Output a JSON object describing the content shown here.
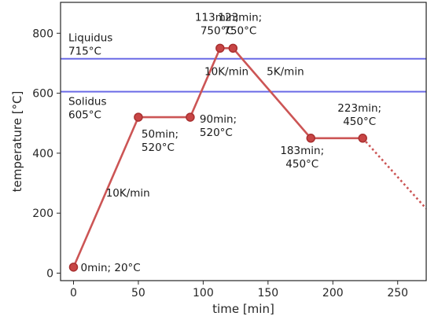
{
  "chart_data": {
    "type": "line",
    "xlabel": "time [min]",
    "ylabel": "temperature [°C]",
    "xlim": [
      -10,
      272
    ],
    "ylim": [
      -25,
      903
    ],
    "xticks": [
      0,
      50,
      100,
      150,
      200,
      250
    ],
    "yticks": [
      0,
      200,
      400,
      600,
      800
    ],
    "grid": false,
    "colors": {
      "profile": "#cc5555",
      "marker_fill": "#c84545",
      "marker_edge": "#a83030",
      "reference_line": "#6a6ae6",
      "axes": "#262626"
    },
    "series": [
      {
        "x": [
          0,
          50,
          90,
          113,
          123,
          183,
          223
        ],
        "y": [
          20,
          520,
          520,
          750,
          750,
          450,
          450
        ]
      }
    ],
    "extrapolation": {
      "x": [
        223,
        272
      ],
      "y": [
        450,
        215
      ]
    },
    "reference_lines": [
      {
        "y": 715,
        "label_line1": "Liquidus",
        "label_line2": "715°C"
      },
      {
        "y": 605,
        "label_line1": "Solidus",
        "label_line2": "605°C"
      }
    ],
    "point_labels": [
      {
        "x": 0,
        "y": 20,
        "lines": [
          "0min; 20°C"
        ]
      },
      {
        "x": 50,
        "y": 520,
        "lines": [
          "50min;",
          "520°C"
        ]
      },
      {
        "x": 90,
        "y": 520,
        "lines": [
          "90min;",
          "520°C"
        ]
      },
      {
        "x": 113,
        "y": 750,
        "lines": [
          "113min;",
          "750°C"
        ]
      },
      {
        "x": 123,
        "y": 750,
        "lines": [
          "123min;",
          "750°C"
        ]
      },
      {
        "x": 183,
        "y": 450,
        "lines": [
          "183min;",
          "450°C"
        ]
      },
      {
        "x": 223,
        "y": 450,
        "lines": [
          "223min;",
          "450°C"
        ]
      }
    ],
    "rate_labels": [
      {
        "text": "10K/min",
        "x": 25,
        "y": 255
      },
      {
        "text": "10K/min",
        "x": 101,
        "y": 660
      },
      {
        "text": "5K/min",
        "x": 149,
        "y": 660
      }
    ]
  }
}
